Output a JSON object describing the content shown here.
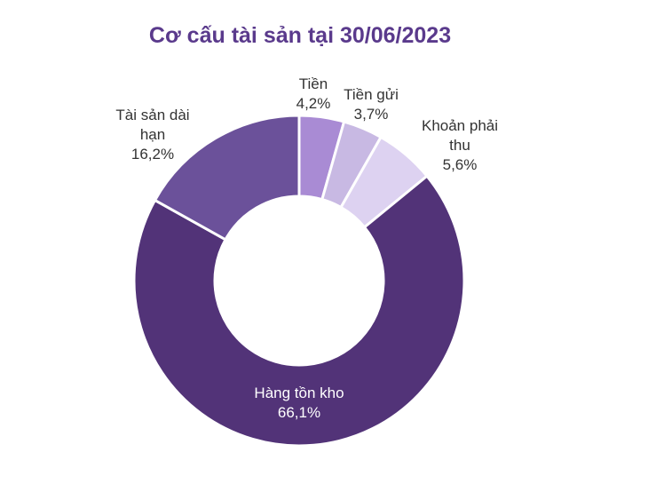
{
  "chart_data": {
    "type": "pie",
    "style": "donut",
    "title": "Cơ cấu tài sản tại 30/06/2023",
    "slices": [
      {
        "label": "Tiền",
        "display_value": "4,2%",
        "value": 4.2,
        "color": "#a98bd4",
        "label_lines": [
          "Tiền"
        ],
        "label_placement": "outside"
      },
      {
        "label": "Tiền gửi",
        "display_value": "3,7%",
        "value": 3.7,
        "color": "#c8b9e3",
        "label_lines": [
          "Tiền gửi"
        ],
        "label_placement": "outside"
      },
      {
        "label": "Khoản phải thu",
        "display_value": "5,6%",
        "value": 5.6,
        "color": "#ddd2f1",
        "label_lines": [
          "Khoản phải",
          "thu"
        ],
        "label_placement": "outside"
      },
      {
        "label": "Hàng tồn kho",
        "display_value": "66,1%",
        "value": 66.1,
        "color": "#523378",
        "label_lines": [
          "Hàng tồn kho"
        ],
        "label_placement": "inside"
      },
      {
        "label": "Tài sản dài hạn",
        "display_value": "16,2%",
        "value": 16.2,
        "color": "#6b519a",
        "label_lines": [
          "Tài sản dài",
          "hạn"
        ],
        "label_placement": "outside"
      }
    ],
    "legend": "none"
  }
}
